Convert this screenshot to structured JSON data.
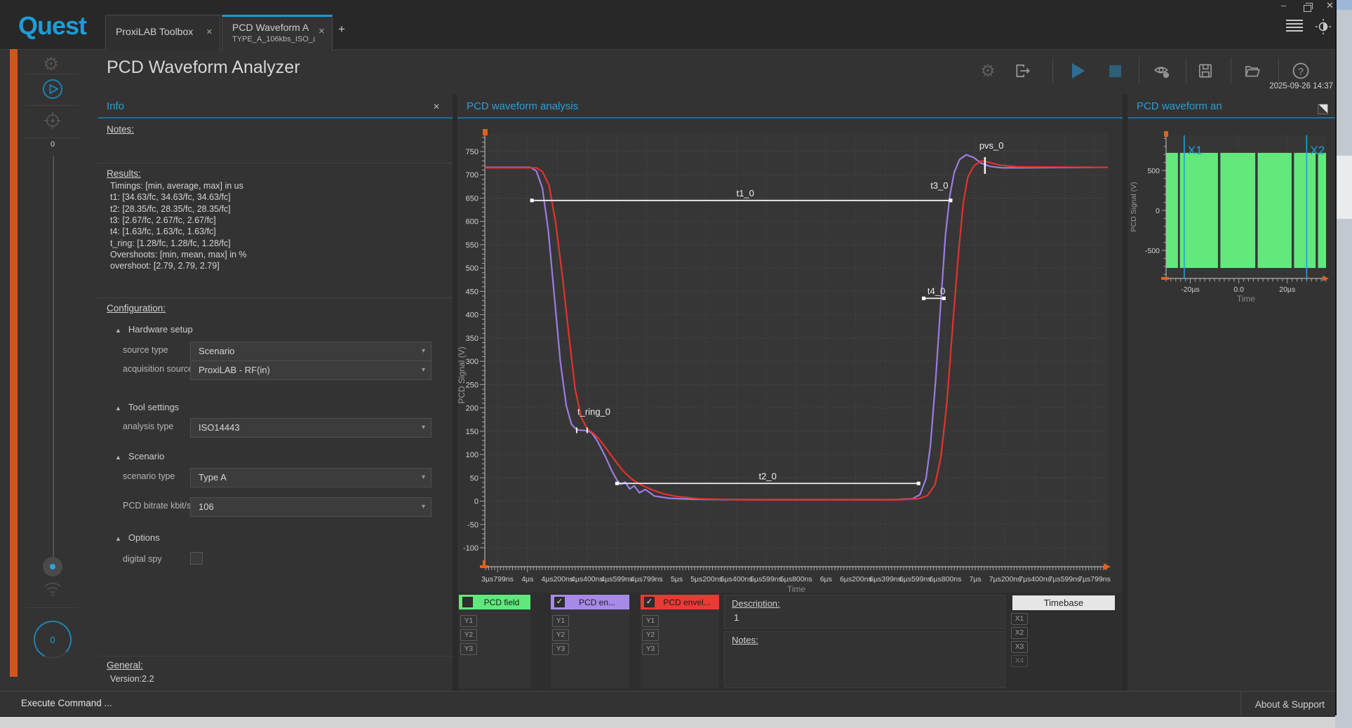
{
  "brand": "Quest",
  "glyphs": {
    "close": "✕",
    "add": "+",
    "minimize": "–",
    "dropdown": "▾",
    "collapse": "▲",
    "help": "?",
    "gear": "⚙"
  },
  "tabs": [
    {
      "label": "ProxiLAB Toolbox"
    },
    {
      "label": "PCD Waveform A",
      "sublabel": "TYPE_A_106kbs_ISO_a",
      "active": true
    }
  ],
  "header": {
    "title": "PCD Waveform Analyzer",
    "datetime": "2025-09-26 14:37"
  },
  "sidebar": {
    "slider_value": "0",
    "gauge_value": "0"
  },
  "info_panel": {
    "title": "Info",
    "notes_label": "Notes:",
    "results_label": "Results:",
    "results_lines": [
      "Timings: [min, average, max] in us",
      "t1: [34.63/fc, 34.63/fc, 34.63/fc]",
      "t2: [28.35/fc, 28.35/fc, 28.35/fc]",
      "t3: [2.67/fc, 2.67/fc, 2.67/fc]",
      "t4: [1.63/fc, 1.63/fc, 1.63/fc]",
      "t_ring: [1.28/fc, 1.28/fc, 1.28/fc]",
      "Overshoots: [min, mean, max] in %",
      "overshoot: [2.79, 2.79, 2.79]"
    ],
    "configuration_label": "Configuration:",
    "groups": [
      {
        "label": "Hardware setup",
        "y": 462,
        "fields": [
          {
            "label": "source type",
            "value": "Scenario",
            "y": 487
          },
          {
            "label": "acquisition source",
            "value": "ProxiLAB - RF(in)",
            "y": 514
          }
        ]
      },
      {
        "label": "Tool settings",
        "y": 573,
        "fields": [
          {
            "label": "analysis type",
            "value": "ISO14443",
            "y": 596
          }
        ]
      },
      {
        "label": "Scenario",
        "y": 643,
        "fields": [
          {
            "label": "scenario type",
            "value": "Type A",
            "y": 667
          },
          {
            "label": "PCD bitrate  kbit/s",
            "value": "106",
            "y": 709
          }
        ]
      },
      {
        "label": "Options",
        "y": 759,
        "fields": [
          {
            "label": "digital spy",
            "checkbox": false,
            "y": 785
          }
        ]
      }
    ],
    "general_label": "General:",
    "version": "Version:2.2"
  },
  "main_panel_title": "PCD waveform analysis",
  "overview_panel_title": "PCD waveform an",
  "legend": {
    "series": [
      {
        "label": "PCD field",
        "color": "#5fe97c",
        "checked": false
      },
      {
        "label": "PCD en...",
        "color": "#a78ae8",
        "checked": true
      },
      {
        "label": "PCD envel...",
        "color": "#ea3a34",
        "checked": true
      }
    ],
    "axis_buttons": [
      "Y1",
      "Y2",
      "Y3"
    ],
    "description_label": "Description:",
    "description_value": "1",
    "notes_label": "Notes:",
    "timebase_label": "Timebase",
    "timebase_buttons": [
      "X1",
      "X2",
      "X3",
      "X4"
    ]
  },
  "statusbar": {
    "left": "Execute Command ...",
    "right": "About & Support"
  },
  "chart_data": [
    {
      "type": "line",
      "title": "PCD waveform analysis",
      "xlabel": "Time",
      "ylabel": "PCD Signal (V)",
      "xunit": "µs",
      "ylim": [
        -100,
        750
      ],
      "ytick_step": 50,
      "grid": "dotted",
      "xticks": [
        {
          "t": 3.799,
          "label": "3µs799ns"
        },
        {
          "t": 4.0,
          "label": "4µs"
        },
        {
          "t": 4.2,
          "label": "4µs200ns"
        },
        {
          "t": 4.4,
          "label": "4µs400ns"
        },
        {
          "t": 4.599,
          "label": "4µs599ns"
        },
        {
          "t": 4.799,
          "label": "4µs799ns"
        },
        {
          "t": 5.0,
          "label": "5µs"
        },
        {
          "t": 5.2,
          "label": "5µs200ns"
        },
        {
          "t": 5.4,
          "label": "5µs400ns"
        },
        {
          "t": 5.599,
          "label": "5µs599ns"
        },
        {
          "t": 5.8,
          "label": "5µs800ns"
        },
        {
          "t": 6.0,
          "label": "6µs"
        },
        {
          "t": 6.2,
          "label": "6µs200ns"
        },
        {
          "t": 6.399,
          "label": "6µs399ns"
        },
        {
          "t": 6.599,
          "label": "6µs599ns"
        },
        {
          "t": 6.8,
          "label": "6µs800ns"
        },
        {
          "t": 7.0,
          "label": "7µs"
        },
        {
          "t": 7.2,
          "label": "7µs200ns"
        },
        {
          "t": 7.4,
          "label": "7µs400ns"
        },
        {
          "t": 7.599,
          "label": "7µs599ns"
        },
        {
          "t": 7.799,
          "label": "7µs799ns"
        }
      ],
      "series": [
        {
          "name": "PCD en...",
          "color": "#9b7ce4",
          "points": [
            [
              3.714,
              716
            ],
            [
              4.02,
              716
            ],
            [
              4.06,
              708
            ],
            [
              4.1,
              672
            ],
            [
              4.14,
              580
            ],
            [
              4.18,
              440
            ],
            [
              4.22,
              300
            ],
            [
              4.26,
              205
            ],
            [
              4.295,
              165
            ],
            [
              4.33,
              153
            ],
            [
              4.4,
              151
            ],
            [
              4.43,
              147
            ],
            [
              4.47,
              128
            ],
            [
              4.52,
              97
            ],
            [
              4.565,
              65
            ],
            [
              4.6,
              45
            ],
            [
              4.625,
              36
            ],
            [
              4.655,
              41
            ],
            [
              4.685,
              26
            ],
            [
              4.715,
              33
            ],
            [
              4.75,
              18
            ],
            [
              4.79,
              25
            ],
            [
              4.85,
              11
            ],
            [
              4.95,
              6
            ],
            [
              5.1,
              4
            ],
            [
              5.5,
              3
            ],
            [
              6.45,
              3
            ],
            [
              6.58,
              5
            ],
            [
              6.63,
              14
            ],
            [
              6.67,
              48
            ],
            [
              6.7,
              120
            ],
            [
              6.735,
              260
            ],
            [
              6.77,
              430
            ],
            [
              6.8,
              570
            ],
            [
              6.83,
              655
            ],
            [
              6.86,
              706
            ],
            [
              6.895,
              733
            ],
            [
              6.94,
              743
            ],
            [
              6.99,
              737
            ],
            [
              7.04,
              725
            ],
            [
              7.1,
              718
            ],
            [
              7.18,
              715
            ],
            [
              7.3,
              715
            ],
            [
              7.8,
              716
            ]
          ]
        },
        {
          "name": "PCD envel...",
          "color": "#e4322c",
          "points": [
            [
              3.714,
              715
            ],
            [
              4.06,
              715
            ],
            [
              4.1,
              707
            ],
            [
              4.145,
              678
            ],
            [
              4.19,
              595
            ],
            [
              4.235,
              480
            ],
            [
              4.28,
              350
            ],
            [
              4.32,
              240
            ],
            [
              4.36,
              180
            ],
            [
              4.4,
              155
            ],
            [
              4.44,
              146
            ],
            [
              4.48,
              133
            ],
            [
              4.53,
              112
            ],
            [
              4.58,
              90
            ],
            [
              4.64,
              65
            ],
            [
              4.7,
              47
            ],
            [
              4.76,
              35
            ],
            [
              4.83,
              25
            ],
            [
              4.91,
              16
            ],
            [
              5.0,
              10
            ],
            [
              5.15,
              5
            ],
            [
              5.4,
              3
            ],
            [
              6.5,
              3
            ],
            [
              6.62,
              5
            ],
            [
              6.68,
              12
            ],
            [
              6.73,
              35
            ],
            [
              6.77,
              95
            ],
            [
              6.81,
              210
            ],
            [
              6.85,
              380
            ],
            [
              6.89,
              540
            ],
            [
              6.92,
              640
            ],
            [
              6.95,
              695
            ],
            [
              6.99,
              719
            ],
            [
              7.04,
              730
            ],
            [
              7.09,
              727
            ],
            [
              7.16,
              721
            ],
            [
              7.28,
              717
            ],
            [
              7.885,
              716
            ]
          ]
        }
      ],
      "annotations": [
        {
          "kind": "hline",
          "label": "t1_0",
          "v": 645,
          "t1": 4.03,
          "t2": 6.835,
          "label_t": 5.4
        },
        {
          "kind": "label",
          "label": "t3_0",
          "t": 6.7,
          "v": 670
        },
        {
          "kind": "hline",
          "label": "t2_0",
          "v": 38,
          "t1": 4.6,
          "t2": 6.62,
          "label_t": 5.55
        },
        {
          "kind": "hline",
          "label": "t4_0",
          "v": 435,
          "t1": 6.655,
          "t2": 6.79,
          "label_t": 6.68
        },
        {
          "kind": "ticks",
          "label": "t_ring_0",
          "v": 152,
          "ts": [
            4.33,
            4.4
          ],
          "label_t": 4.335,
          "label_v": 185
        },
        {
          "kind": "vtick",
          "label": "pvs_0",
          "t": 7.065,
          "v1": 702,
          "v2": 738,
          "label_v": 756
        }
      ]
    },
    {
      "type": "area-bursts",
      "title": "PCD waveform an (overview)",
      "xlabel": "Time",
      "ylabel": "PCD Signal (V)",
      "xunit": "µs",
      "xlim": [
        -30,
        36
      ],
      "ylim": [
        -850,
        940
      ],
      "yticks": [
        500,
        0,
        -500
      ],
      "xticks": [
        {
          "t": -20,
          "label": "-20µs"
        },
        {
          "t": 0,
          "label": "0.0"
        },
        {
          "t": 20,
          "label": "20µs"
        }
      ],
      "series_name": "PCD field",
      "color": "#63e87c",
      "amplitude": 720,
      "bursts": [
        [
          -30,
          -25.1
        ],
        [
          -24.3,
          -8.6
        ],
        [
          -7.6,
          6.8
        ],
        [
          7.8,
          21.8
        ],
        [
          22.8,
          31.7
        ],
        [
          32.7,
          36
        ]
      ],
      "cursors": [
        {
          "label": "X1",
          "t": -22.5
        },
        {
          "label": "X2",
          "t": 28.0
        }
      ]
    }
  ]
}
